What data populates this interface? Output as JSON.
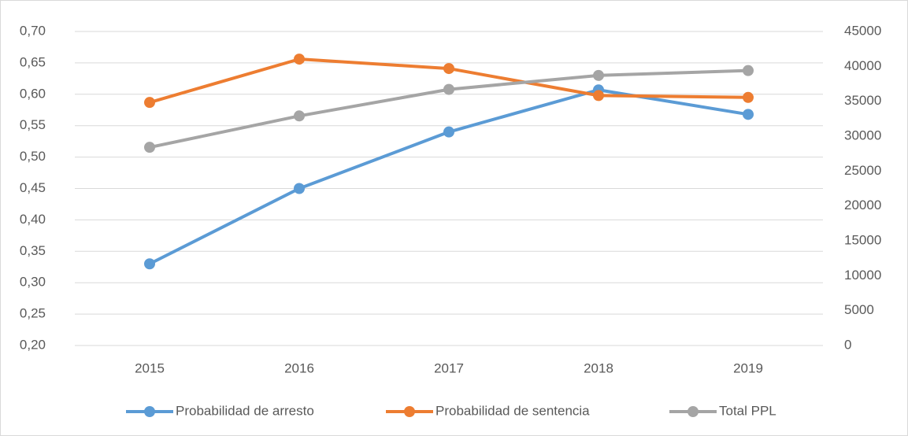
{
  "chart_data": {
    "type": "line",
    "categories": [
      "2015",
      "2016",
      "2017",
      "2018",
      "2019"
    ],
    "series": [
      {
        "name": "Probabilidad de arresto",
        "color": "#5b9bd5",
        "values": [
          0.33,
          0.45,
          0.54,
          0.607,
          0.568
        ]
      },
      {
        "name": "Probabilidad de sentencia",
        "color": "#ed7d31",
        "values": [
          0.587,
          0.656,
          0.641,
          0.598,
          0.595
        ]
      },
      {
        "name": "Total PPL",
        "color": "#a5a5a5",
        "axis": "y2",
        "values": [
          28400,
          32900,
          36700,
          38700,
          39400
        ]
      }
    ],
    "ylim": [
      0.2,
      0.7
    ],
    "yticks": [
      {
        "value": 0.2,
        "label": "0,20"
      },
      {
        "value": 0.25,
        "label": "0,25"
      },
      {
        "value": 0.3,
        "label": "0,30"
      },
      {
        "value": 0.35,
        "label": "0,35"
      },
      {
        "value": 0.4,
        "label": "0,40"
      },
      {
        "value": 0.45,
        "label": "0,45"
      },
      {
        "value": 0.5,
        "label": "0,50"
      },
      {
        "value": 0.55,
        "label": "0,55"
      },
      {
        "value": 0.6,
        "label": "0,60"
      },
      {
        "value": 0.65,
        "label": "0,65"
      },
      {
        "value": 0.7,
        "label": "0,70"
      }
    ],
    "y2lim": [
      0,
      45000
    ],
    "y2ticks": [
      0,
      5000,
      10000,
      15000,
      20000,
      25000,
      30000,
      35000,
      40000,
      45000
    ],
    "grid": true,
    "legend": "bottom"
  }
}
